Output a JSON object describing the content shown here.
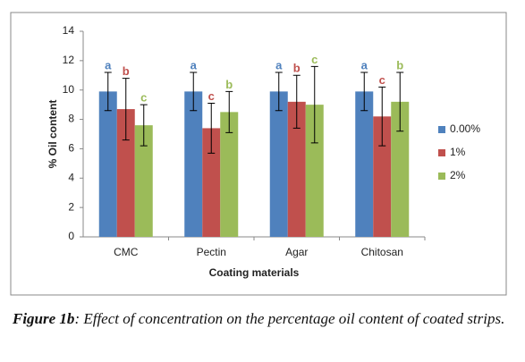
{
  "chart_data": {
    "type": "bar",
    "x_label": "Coating materials",
    "y_label": "% Oil content",
    "categories": [
      "CMC",
      "Pectin",
      "Agar",
      "Chitosan"
    ],
    "series": [
      {
        "name": "0.00%",
        "color": "#4f81bd",
        "values": [
          9.9,
          9.9,
          9.9,
          9.9
        ],
        "errors": [
          1.3,
          1.3,
          1.3,
          1.3
        ],
        "letters": [
          "a",
          "a",
          "a",
          "a"
        ]
      },
      {
        "name": "1%",
        "color": "#c0504d",
        "values": [
          8.7,
          7.4,
          9.2,
          8.2
        ],
        "errors": [
          2.1,
          1.7,
          1.8,
          2.0
        ],
        "letters": [
          "b",
          "c",
          "b",
          "c"
        ]
      },
      {
        "name": "2%",
        "color": "#9bbb59",
        "values": [
          7.6,
          8.5,
          9.0,
          9.2
        ],
        "errors": [
          1.4,
          1.4,
          2.6,
          2.0
        ],
        "letters": [
          "c",
          "b",
          "c",
          "b"
        ]
      }
    ],
    "ylim": [
      0,
      14
    ],
    "yticks": [
      0,
      2,
      4,
      6,
      8,
      10,
      12,
      14
    ],
    "grid": false,
    "legend": "right"
  },
  "caption": {
    "label": "Figure 1b",
    "text": ": Effect of concentration on the percentage oil content of coated strips."
  }
}
